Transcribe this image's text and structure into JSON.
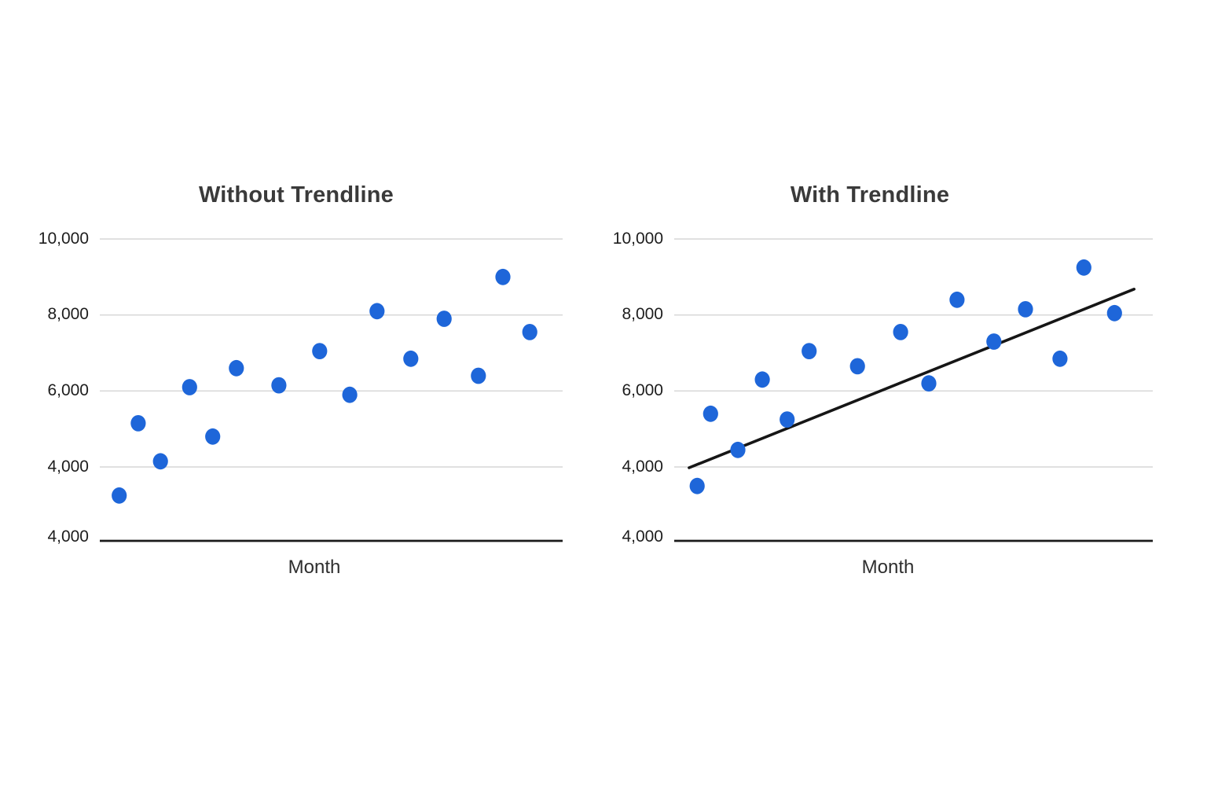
{
  "page": {
    "background": "#ffffff"
  },
  "colors": {
    "point": "#1E66D9",
    "trendline": "#161616",
    "gridline": "#d5d5d5",
    "axis_line": "#1b1b1b",
    "title_text": "#3a3a3a",
    "tick_text": "#1d1d1d",
    "xlabel_text": "#2e2e2e"
  },
  "chart_data": [
    {
      "type": "scatter",
      "title": "Without Trendline",
      "xlabel": "Month",
      "ylabel": "",
      "legend": "none",
      "grid": "horizontal-only",
      "x_axis_tick_labels": "none",
      "y_tick_labels": [
        "10,000",
        "8,000",
        "6,000",
        "4,000",
        "4,000"
      ],
      "y_gridline_values": [
        10000,
        8000,
        6000,
        4000
      ],
      "baseline_label": "4,000",
      "baseline_note": "bottom axis line sits where ~2,000 would fall but is labeled 4,000 in the source image",
      "ylim": [
        2050,
        10000
      ],
      "points": [
        {
          "x_pct": 4.2,
          "y": 3250
        },
        {
          "x_pct": 8.3,
          "y": 5150
        },
        {
          "x_pct": 13.1,
          "y": 4150
        },
        {
          "x_pct": 19.4,
          "y": 6100
        },
        {
          "x_pct": 24.4,
          "y": 4800
        },
        {
          "x_pct": 29.5,
          "y": 6600
        },
        {
          "x_pct": 38.7,
          "y": 6150
        },
        {
          "x_pct": 47.5,
          "y": 7050
        },
        {
          "x_pct": 54.0,
          "y": 5900
        },
        {
          "x_pct": 59.9,
          "y": 8100
        },
        {
          "x_pct": 67.2,
          "y": 6850
        },
        {
          "x_pct": 74.4,
          "y": 7900
        },
        {
          "x_pct": 81.8,
          "y": 6400
        },
        {
          "x_pct": 87.1,
          "y": 9000
        },
        {
          "x_pct": 92.9,
          "y": 7550
        }
      ],
      "trendline": null
    },
    {
      "type": "scatter",
      "title": "With Trendline",
      "xlabel": "Month",
      "ylabel": "",
      "legend": "none",
      "grid": "horizontal-only",
      "x_axis_tick_labels": "none",
      "y_tick_labels": [
        "10,000",
        "8,000",
        "6,000",
        "4,000",
        "4,000"
      ],
      "y_gridline_values": [
        10000,
        8000,
        6000,
        4000
      ],
      "baseline_label": "4,000",
      "baseline_note": "bottom axis line sits where ~2,000 would fall but is labeled 4,000 in the source image",
      "ylim": [
        2050,
        10000
      ],
      "points": [
        {
          "x_pct": 4.8,
          "y": 3500
        },
        {
          "x_pct": 7.6,
          "y": 5400
        },
        {
          "x_pct": 13.3,
          "y": 4450
        },
        {
          "x_pct": 18.4,
          "y": 6300
        },
        {
          "x_pct": 23.6,
          "y": 5250
        },
        {
          "x_pct": 28.2,
          "y": 7050
        },
        {
          "x_pct": 38.3,
          "y": 6650
        },
        {
          "x_pct": 47.3,
          "y": 7550
        },
        {
          "x_pct": 53.2,
          "y": 6200
        },
        {
          "x_pct": 59.1,
          "y": 8400
        },
        {
          "x_pct": 66.8,
          "y": 7300
        },
        {
          "x_pct": 73.4,
          "y": 8150
        },
        {
          "x_pct": 80.6,
          "y": 6850
        },
        {
          "x_pct": 85.6,
          "y": 9250
        },
        {
          "x_pct": 92.0,
          "y": 8050
        }
      ],
      "trendline": {
        "x1_pct": 3.1,
        "y1": 3980,
        "x2_pct": 96.1,
        "y2": 8680
      }
    }
  ]
}
